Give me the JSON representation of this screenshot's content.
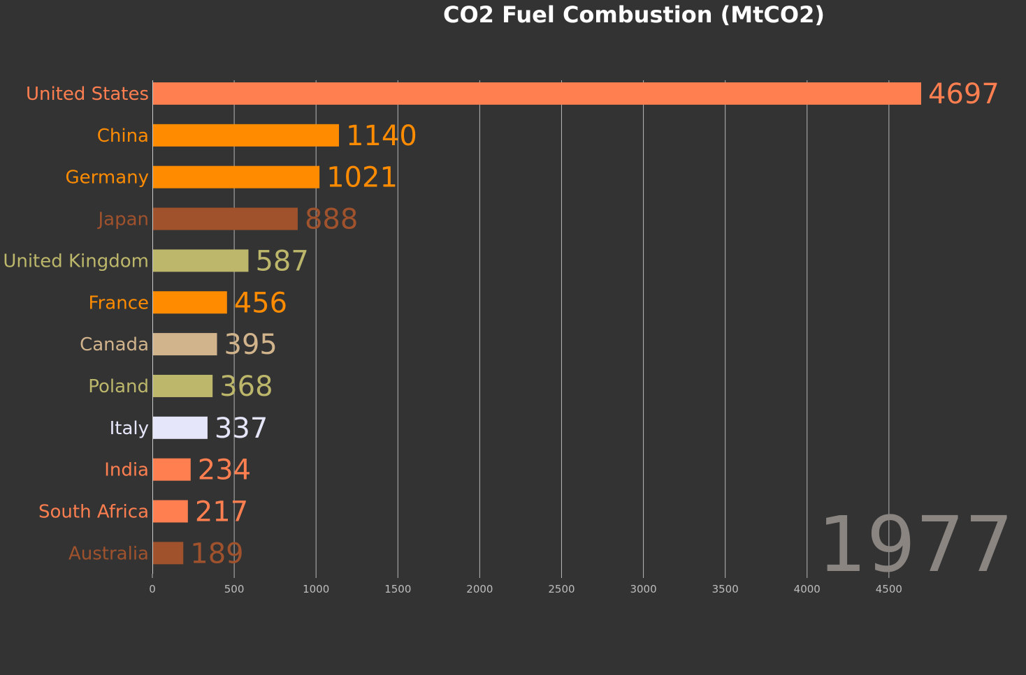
{
  "chart_data": {
    "type": "bar",
    "orientation": "horizontal",
    "title": "CO2 Fuel Combustion (MtCO2)",
    "year": "1977",
    "xlim": [
      0,
      4697
    ],
    "x_ticks": [
      0,
      500,
      1000,
      1500,
      2000,
      2500,
      3000,
      3500,
      4000,
      4500
    ],
    "grid": true,
    "categories": [
      "United States",
      "China",
      "Germany",
      "Japan",
      "United Kingdom",
      "France",
      "Canada",
      "Poland",
      "Italy",
      "India",
      "South Africa",
      "Australia"
    ],
    "values": [
      4697,
      1140,
      1021,
      888,
      587,
      456,
      395,
      368,
      337,
      234,
      217,
      189
    ],
    "colors": [
      "#ff7f50",
      "#ff8c00",
      "#ff8c00",
      "#a0522d",
      "#bdb76b",
      "#ff8c00",
      "#d2b48c",
      "#bdb76b",
      "#e6e6fa",
      "#ff7f50",
      "#ff7f50",
      "#a0522d"
    ]
  }
}
